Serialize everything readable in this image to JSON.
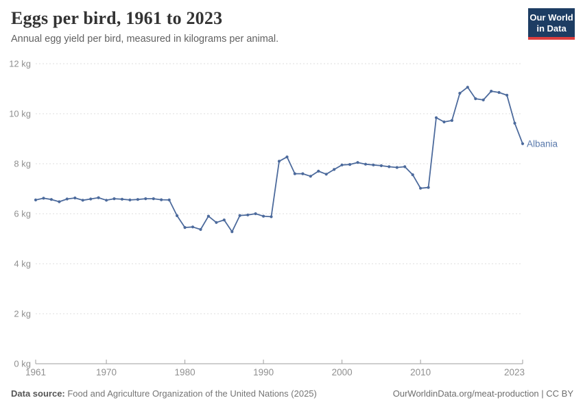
{
  "header": {
    "title": "Eggs per bird, 1961 to 2023",
    "subtitle": "Annual egg yield per bird, measured in kilograms per animal.",
    "logo": {
      "line1": "Our World",
      "line2": "in Data"
    }
  },
  "footer": {
    "source_label": "Data source:",
    "source_text": " Food and Agriculture Organization of the United Nations (2025)",
    "credit_text": "OurWorldinData.org/meat-production | CC BY"
  },
  "colors": {
    "line": "#4c6a9c",
    "entity_label": "#5878ab",
    "grid": "#dddddd",
    "axis": "#9e9e9e",
    "tick_label": "#8f8f8f",
    "logo_bg": "#1d3d63",
    "logo_red": "#dc3e3e"
  },
  "chart_data": {
    "type": "line",
    "title": "Eggs per bird, 1961 to 2023",
    "subtitle": "Annual egg yield per bird, measured in kilograms per animal.",
    "unit": "kg",
    "xlabel": "",
    "ylabel": "",
    "ylim": [
      0,
      12
    ],
    "yticks": [
      0,
      2,
      4,
      6,
      8,
      10,
      12
    ],
    "xticks": [
      1961,
      1970,
      1980,
      1990,
      2000,
      2010,
      2023
    ],
    "grid": "horizontal-dashed",
    "legend": "inline-end-label",
    "x": [
      1961,
      1962,
      1963,
      1964,
      1965,
      1966,
      1967,
      1968,
      1969,
      1970,
      1971,
      1972,
      1973,
      1974,
      1975,
      1976,
      1977,
      1978,
      1979,
      1980,
      1981,
      1982,
      1983,
      1984,
      1985,
      1986,
      1987,
      1988,
      1989,
      1990,
      1991,
      1992,
      1993,
      1994,
      1995,
      1996,
      1997,
      1998,
      1999,
      2000,
      2001,
      2002,
      2003,
      2004,
      2005,
      2006,
      2007,
      2008,
      2009,
      2010,
      2011,
      2012,
      2013,
      2014,
      2015,
      2016,
      2017,
      2018,
      2019,
      2020,
      2021,
      2022,
      2023
    ],
    "series": [
      {
        "name": "Albania",
        "values": [
          6.55,
          6.62,
          6.57,
          6.48,
          6.59,
          6.63,
          6.54,
          6.59,
          6.64,
          6.54,
          6.6,
          6.58,
          6.55,
          6.57,
          6.6,
          6.6,
          6.56,
          6.55,
          5.92,
          5.45,
          5.47,
          5.37,
          5.9,
          5.65,
          5.75,
          5.28,
          5.93,
          5.95,
          6.0,
          5.9,
          5.88,
          8.1,
          8.27,
          7.6,
          7.6,
          7.5,
          7.7,
          7.58,
          7.77,
          7.95,
          7.97,
          8.05,
          7.98,
          7.95,
          7.92,
          7.88,
          7.85,
          7.88,
          7.56,
          7.02,
          7.05,
          9.84,
          9.67,
          9.73,
          10.82,
          11.06,
          10.6,
          10.55,
          10.9,
          10.85,
          10.74,
          9.62,
          8.8
        ]
      }
    ]
  }
}
